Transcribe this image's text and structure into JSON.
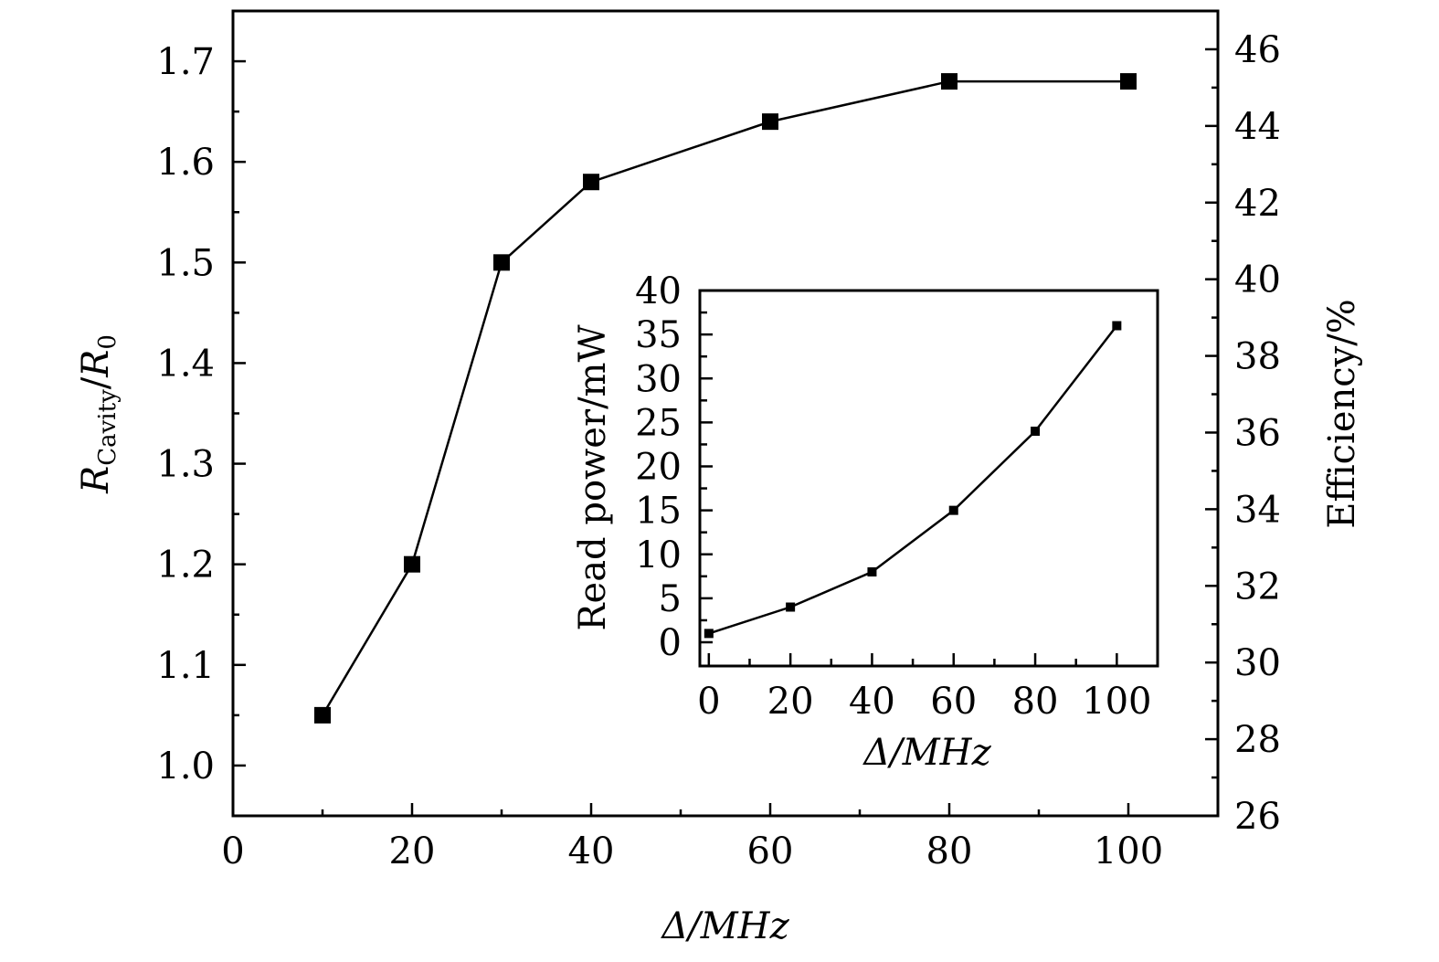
{
  "chart_data": [
    {
      "type": "line",
      "name": "main",
      "xlabel": "Δ/MHz",
      "ylabel": "R_Cavity/R_0",
      "ylabel_main": "R",
      "ylabel_sub": "Cavity",
      "ylabel_mid": "/",
      "ylabel_end": "R",
      "ylabel_end_sub": "0",
      "y2label": "Efficiency/%",
      "xlim": [
        0,
        110
      ],
      "ylim": [
        0.95,
        1.75
      ],
      "y2lim": [
        26,
        47
      ],
      "xticks": [
        0,
        20,
        40,
        60,
        80,
        100
      ],
      "yticks": [
        1.0,
        1.1,
        1.2,
        1.3,
        1.4,
        1.5,
        1.6,
        1.7
      ],
      "ytick_labels": [
        "1.0",
        "1.1",
        "1.2",
        "1.3",
        "1.4",
        "1.5",
        "1.6",
        "1.7"
      ],
      "y2ticks": [
        26,
        28,
        30,
        32,
        34,
        36,
        38,
        40,
        42,
        44,
        46
      ],
      "grid": false,
      "series": [
        {
          "name": "R_Cavity/R_0",
          "marker": "square",
          "x": [
            10,
            20,
            30,
            40,
            60,
            80,
            100
          ],
          "y": [
            1.05,
            1.2,
            1.5,
            1.58,
            1.64,
            1.68,
            1.68
          ]
        }
      ]
    },
    {
      "type": "line",
      "name": "inset",
      "xlabel": "Δ/MHz",
      "ylabel": "Read power/mW",
      "xlim": [
        -2.2,
        110
      ],
      "ylim": [
        -2.7,
        40
      ],
      "xticks": [
        0,
        20,
        40,
        60,
        80,
        100
      ],
      "yticks": [
        0,
        5,
        10,
        15,
        20,
        25,
        30,
        35,
        40
      ],
      "grid": false,
      "series": [
        {
          "name": "Read power",
          "marker": "square",
          "x": [
            0,
            20,
            40,
            60,
            80,
            100
          ],
          "y": [
            1,
            4,
            8,
            15,
            24,
            36
          ]
        }
      ]
    }
  ]
}
